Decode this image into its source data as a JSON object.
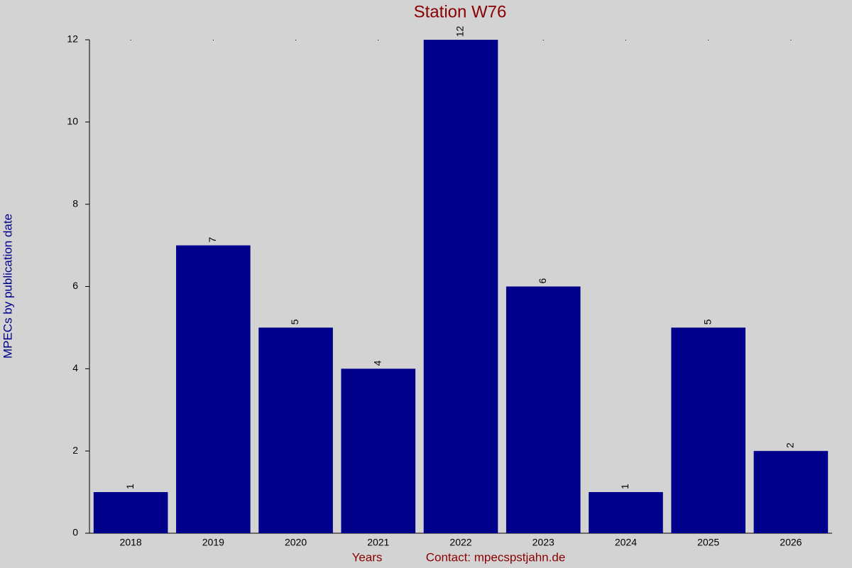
{
  "chart_data": {
    "type": "bar",
    "title": "Station W76",
    "x_label": "Years",
    "y_label": "MPECs by publication date",
    "footer": "Contact: mpecspstjahn.de",
    "categories": [
      "2018",
      "2019",
      "2020",
      "2021",
      "2022",
      "2023",
      "2024",
      "2025",
      "2026"
    ],
    "values": [
      1,
      7,
      5,
      4,
      12,
      6,
      1,
      5,
      2
    ],
    "color": "#00008b",
    "ylim": [
      0,
      12
    ],
    "yticks": [
      0,
      2,
      4,
      6,
      8,
      10,
      12
    ],
    "grid": false,
    "value_labels_shown": true
  }
}
